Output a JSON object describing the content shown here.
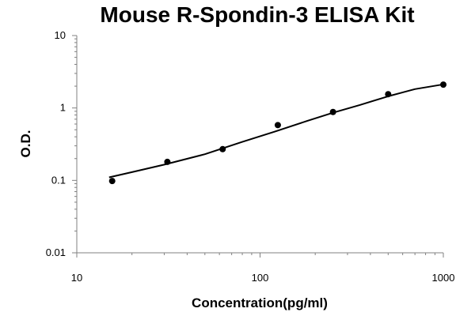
{
  "chart_data": {
    "type": "scatter",
    "title": "Mouse R-Spondin-3 ELISA Kit",
    "xlabel": "Concentration(pg/ml)",
    "ylabel": "O.D.",
    "x_scale": "log",
    "y_scale": "log",
    "xlim": [
      10,
      1000
    ],
    "ylim": [
      0.01,
      10
    ],
    "x_ticks": [
      "10",
      "100",
      "1000"
    ],
    "y_ticks": [
      "0.01",
      "0.1",
      "1",
      "10"
    ],
    "grid": false,
    "legend": "none",
    "series": [
      {
        "points": [
          {
            "x": 15.6,
            "y": 0.098
          },
          {
            "x": 31.2,
            "y": 0.18
          },
          {
            "x": 62.5,
            "y": 0.27
          },
          {
            "x": 125,
            "y": 0.58
          },
          {
            "x": 250,
            "y": 0.88
          },
          {
            "x": 500,
            "y": 1.55
          },
          {
            "x": 1000,
            "y": 2.1
          }
        ],
        "fit_curve": {
          "x": [
            15,
            20,
            30,
            50,
            80,
            120,
            180,
            250,
            350,
            500,
            700,
            1000
          ],
          "y": [
            0.11,
            0.13,
            0.165,
            0.23,
            0.34,
            0.47,
            0.66,
            0.86,
            1.1,
            1.45,
            1.82,
            2.12
          ]
        }
      }
    ],
    "colors": {
      "marker": "#000000",
      "line": "#000000",
      "axis": "#808080"
    }
  }
}
